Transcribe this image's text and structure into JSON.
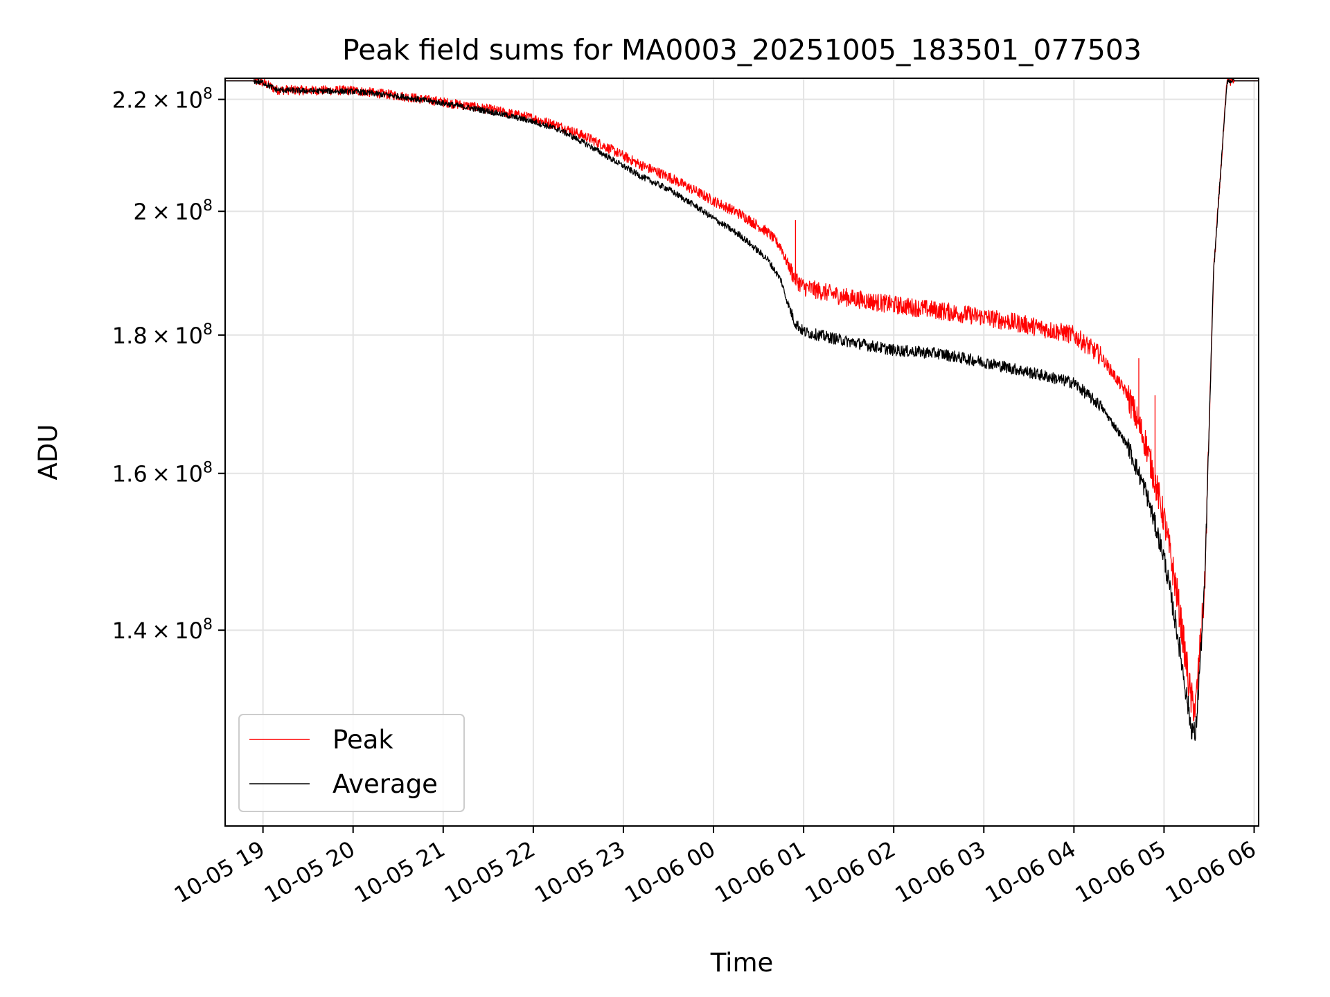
{
  "chart_data": {
    "type": "line",
    "title": "Peak field sums for MA0003_20251005_183501_077503",
    "xlabel": "Time",
    "ylabel": "ADU",
    "yscale": "log",
    "grid": true,
    "legend_location": "lower-left",
    "xlim_hours": [
      -0.42,
      11.05
    ],
    "ylim": [
      118500000,
      224000000
    ],
    "x_ticks": [
      {
        "hour": 0,
        "label": "10-05 19"
      },
      {
        "hour": 1,
        "label": "10-05 20"
      },
      {
        "hour": 2,
        "label": "10-05 21"
      },
      {
        "hour": 3,
        "label": "10-05 22"
      },
      {
        "hour": 4,
        "label": "10-05 23"
      },
      {
        "hour": 5,
        "label": "10-06 00"
      },
      {
        "hour": 6,
        "label": "10-06 01"
      },
      {
        "hour": 7,
        "label": "10-06 02"
      },
      {
        "hour": 8,
        "label": "10-06 03"
      },
      {
        "hour": 9,
        "label": "10-06 04"
      },
      {
        "hour": 10,
        "label": "10-06 05"
      },
      {
        "hour": 11,
        "label": "10-06 06"
      }
    ],
    "y_ticks": [
      {
        "value": 220000000,
        "mantissa": "2.2",
        "exponent": "8"
      },
      {
        "value": 200000000,
        "mantissa": "2",
        "exponent": "8"
      },
      {
        "value": 180000000,
        "mantissa": "1.8",
        "exponent": "8"
      },
      {
        "value": 160000000,
        "mantissa": "1.6",
        "exponent": "8"
      },
      {
        "value": 140000000,
        "mantissa": "1.4",
        "exponent": "8"
      }
    ],
    "times_label": "×",
    "base_label": "10",
    "series": [
      {
        "name": "Peak",
        "color": "#ff0000",
        "noise": 900000,
        "x": [
          -0.42,
          -0.12,
          0.0,
          0.15,
          0.5,
          1.0,
          1.5,
          2.0,
          2.5,
          3.0,
          3.3,
          3.6,
          3.9,
          4.2,
          4.5,
          4.8,
          5.0,
          5.3,
          5.6,
          5.75,
          5.8,
          5.9,
          6.0,
          6.5,
          7.0,
          7.5,
          8.0,
          8.5,
          9.0,
          9.3,
          9.6,
          9.8,
          10.0,
          10.15,
          10.3,
          10.35,
          10.45,
          10.55,
          10.7,
          10.8,
          11.05
        ],
        "y": [
          223500000,
          223500000,
          223200000,
          221800000,
          221700000,
          221700000,
          220700000,
          219500000,
          218200000,
          216500000,
          215000000,
          213000000,
          210500000,
          208000000,
          206000000,
          203500000,
          201800000,
          199500000,
          196500000,
          194000000,
          192000000,
          189000000,
          187500000,
          185800000,
          184700000,
          183800000,
          182800000,
          181500000,
          180000000,
          176800000,
          171000000,
          164000000,
          154000000,
          144000000,
          132000000,
          131000000,
          145000000,
          190000000,
          223500000,
          223500000,
          223500000
        ],
        "spikes": [
          {
            "x": 5.91,
            "y": 198500000
          },
          {
            "x": 9.72,
            "y": 176500000
          },
          {
            "x": 9.9,
            "y": 171000000
          }
        ]
      },
      {
        "name": "Average",
        "color": "#000000",
        "noise": 550000,
        "x": [
          -0.42,
          -0.12,
          0.0,
          0.15,
          0.5,
          1.0,
          1.5,
          2.0,
          2.5,
          3.0,
          3.3,
          3.6,
          3.9,
          4.2,
          4.5,
          4.8,
          5.0,
          5.3,
          5.6,
          5.75,
          5.8,
          5.9,
          6.0,
          6.5,
          7.0,
          7.5,
          8.0,
          8.5,
          9.0,
          9.3,
          9.6,
          9.8,
          10.0,
          10.15,
          10.3,
          10.35,
          10.45,
          10.55,
          10.7,
          10.8,
          11.05
        ],
        "y": [
          223500000,
          223500000,
          223200000,
          221800000,
          221600000,
          221500000,
          220600000,
          219300000,
          217800000,
          215900000,
          214300000,
          211700000,
          208800000,
          206000000,
          203800000,
          200900000,
          198800000,
          195900000,
          192000000,
          188600000,
          186000000,
          182000000,
          180500000,
          179000000,
          177700000,
          177200000,
          175900000,
          174400000,
          172800000,
          169400000,
          163800000,
          157500000,
          149000000,
          139500000,
          129000000,
          128000000,
          145000000,
          190000000,
          223500000,
          223500000,
          223500000
        ],
        "spikes": []
      }
    ]
  }
}
